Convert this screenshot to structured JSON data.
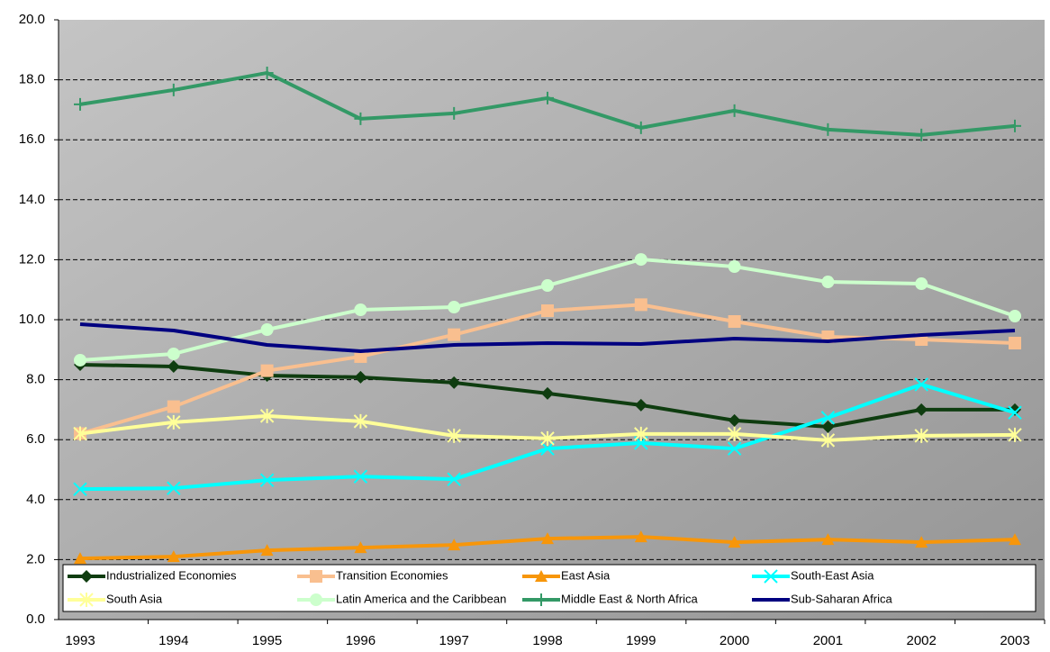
{
  "chart_data": {
    "type": "line",
    "categories": [
      "1993",
      "1994",
      "1995",
      "1996",
      "1997",
      "1998",
      "1999",
      "2000",
      "2001",
      "2002",
      "2003"
    ],
    "ylim": [
      0,
      20
    ],
    "yticks": [
      {
        "value": 0,
        "label": "0.0"
      },
      {
        "value": 2,
        "label": "2.0"
      },
      {
        "value": 4,
        "label": "4.0"
      },
      {
        "value": 6,
        "label": "6.0"
      },
      {
        "value": 8,
        "label": "8.0"
      },
      {
        "value": 10,
        "label": "10.0"
      },
      {
        "value": 12,
        "label": "12.0"
      },
      {
        "value": 14,
        "label": "14.0"
      },
      {
        "value": 16,
        "label": "16.0"
      },
      {
        "value": 18,
        "label": "18.0"
      },
      {
        "value": 20,
        "label": "20.0"
      }
    ],
    "grid": true,
    "legend": "bottom",
    "series": [
      {
        "name": "Industrialized Economies",
        "color": "#0f3d10",
        "marker": "diamond",
        "values": [
          8.5,
          8.44,
          8.14,
          8.08,
          7.9,
          7.54,
          7.15,
          6.64,
          6.43,
          7.0,
          7.0
        ]
      },
      {
        "name": "Transition Economies",
        "color": "#f9bf8f",
        "marker": "square",
        "values": [
          6.2,
          7.1,
          8.3,
          8.77,
          9.5,
          10.3,
          10.5,
          9.94,
          9.43,
          9.34,
          9.22
        ]
      },
      {
        "name": "East Asia",
        "color": "#f7960a",
        "marker": "triangle",
        "values": [
          2.04,
          2.1,
          2.31,
          2.4,
          2.49,
          2.7,
          2.76,
          2.58,
          2.67,
          2.58,
          2.67
        ]
      },
      {
        "name": "South-East Asia",
        "color": "#00ffff",
        "marker": "x",
        "values": [
          4.35,
          4.38,
          4.65,
          4.77,
          4.68,
          5.7,
          5.89,
          5.7,
          6.73,
          7.84,
          6.9
        ]
      },
      {
        "name": "South Asia",
        "color": "#ffff99",
        "marker": "star",
        "values": [
          6.2,
          6.58,
          6.79,
          6.61,
          6.13,
          6.04,
          6.19,
          6.19,
          5.98,
          6.13,
          6.16
        ]
      },
      {
        "name": "Latin America and the Caribbean",
        "color": "#ccffcc",
        "marker": "circle",
        "values": [
          8.65,
          8.86,
          9.67,
          10.33,
          10.42,
          11.14,
          12.01,
          11.77,
          11.26,
          11.2,
          10.12
        ]
      },
      {
        "name": "Middle East & North Africa",
        "color": "#339966",
        "marker": "plus",
        "values": [
          17.18,
          17.66,
          18.23,
          16.7,
          16.88,
          17.39,
          16.4,
          16.97,
          16.34,
          16.16,
          16.46
        ]
      },
      {
        "name": "Sub-Saharan Africa",
        "color": "#000080",
        "marker": "none",
        "values": [
          9.85,
          9.64,
          9.16,
          8.95,
          9.16,
          9.22,
          9.19,
          9.37,
          9.28,
          9.49,
          9.64
        ]
      }
    ]
  }
}
